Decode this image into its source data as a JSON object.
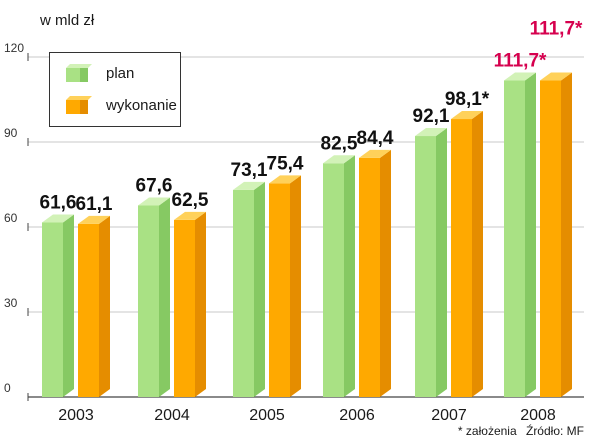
{
  "unit_label": "w mld zł",
  "footnote": {
    "note": "* założenia",
    "source": "Źródło: MF"
  },
  "colors": {
    "plan": "#a9e184",
    "plan_dark": "#86c963",
    "plan_top": "#d2f2b7",
    "wykonanie": "#ffa900",
    "wykonanie_dark": "#e58d00",
    "wykonanie_top": "#ffd15a",
    "label_default": "#111111",
    "label_highlight": "#d6004e"
  },
  "chart_data": {
    "type": "bar",
    "categories": [
      "2003",
      "2004",
      "2005",
      "2006",
      "2007",
      "2008"
    ],
    "series": [
      {
        "name": "plan",
        "values": [
          61.6,
          67.6,
          73.1,
          82.5,
          92.1,
          111.7
        ],
        "labels": [
          "61,6",
          "67,6",
          "73,1",
          "82,5",
          "92,1",
          "111,7*"
        ]
      },
      {
        "name": "wykonanie",
        "values": [
          61.1,
          62.5,
          75.4,
          84.4,
          98.1,
          111.7
        ],
        "labels": [
          "61,1",
          "62,5",
          "75,4",
          "84,4",
          "98,1*",
          "111,7*"
        ]
      }
    ],
    "highlighted_labels": [
      [
        5,
        0
      ],
      [
        5,
        1
      ]
    ],
    "yticks": [
      "0",
      "30",
      "60",
      "90",
      "120"
    ],
    "ylim": [
      0,
      120
    ],
    "grid": true,
    "legend_position": "top-left",
    "ylabel": "w mld zł",
    "xlabel": ""
  }
}
